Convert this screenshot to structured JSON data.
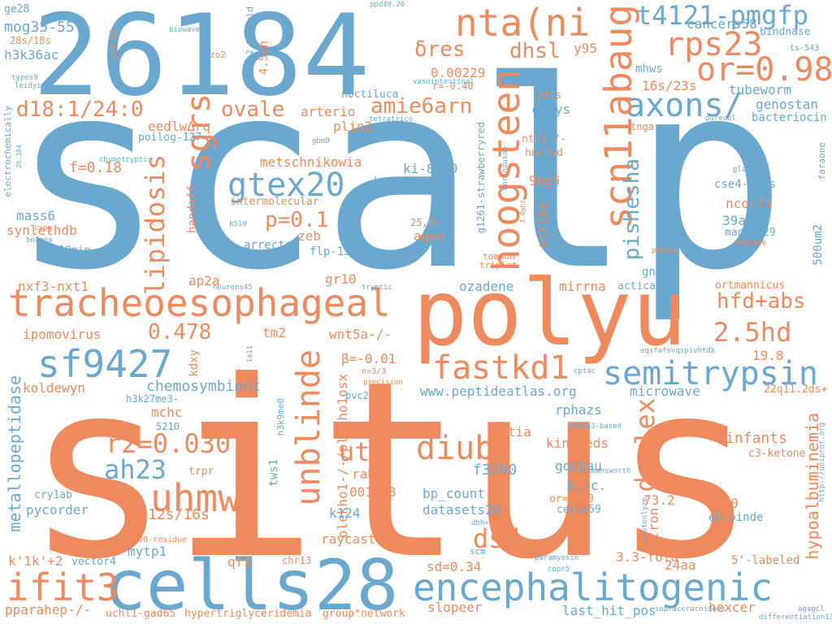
{
  "colors": {
    "blue": "#6aa8d0",
    "orange": "#ee8a5e",
    "background": "#ffffff"
  },
  "words": {
    "scalp": "scalp",
    "situs": "situs",
    "n26184": "26184",
    "polyu": "polyu",
    "cells28": "cells28",
    "tracheoesophageal": "tracheoesophageal",
    "encephalitogenic": "encephalitogenic",
    "semitrypsin": "semitrypsin",
    "sf9427": "sf9427",
    "uhmw": "uhmw",
    "ifit3": "ifit3",
    "ntani": "nta(ni",
    "rps23": "rps23",
    "or098": "or=0.98",
    "axons": "axons/",
    "t4121": "t4121-pmgfp",
    "hoogsteen": "hoogsteen",
    "scn11abaug": "scn11abaug",
    "gtex20": "gtex20",
    "fastkd1": "fastkd1",
    "diub": "diub",
    "unblinde": "unblinde",
    "duplex": "duplex",
    "r20030": "r2=0.030",
    "ah23": "ah23",
    "utp": "utp",
    "dsd": "dsd",
    "hd25": "2.5hd",
    "hfdabs": "hfd+abs",
    "sgrs": "sgrs",
    "lipidosis": "lipidosis",
    "d18": "d18:1/24:0",
    "ovale": "ovale",
    "amie6arn": "amie6arn",
    "p01": "p=0.1",
    "dres": "δres",
    "dhsl": "dhsl",
    "pishesha": "pishesha",
    "v0478": "0.478",
    "mog3555": "mog35-55",
    "h3k36ac": "h3k36ac",
    "ge28": "ge28",
    "f018": "f=0.18",
    "mass6": "mass6",
    "synlethdb": "synlethdb",
    "nxf3": "nxf3-nxt1",
    "ipomovirus": "ipomovirus",
    "metallopeptidase": "metallopeptidase",
    "koldewyn": "koldewyn",
    "chemosymbiont": "chemosymbiont",
    "peptideatlas": "www.peptideatlas.org",
    "microwave": "microwave",
    "hypoalbuminemia": "hypoalbuminemia",
    "cancers58": "cancers58",
    "or040": "r=-0.40",
    "tubeworm": "tubeworm",
    "genostan": "genostan",
    "bacteriocin": "bacteriocin",
    "s1623": "16s/23s",
    "mhws": "mhws",
    "y95": "y95",
    "bindnase": "bindnase",
    "ts543": "ts-543",
    "v000229": "0.00229",
    "eedlwdrq": "eedlwΔrq",
    "poilog": "poilog-127",
    "arterio": "arterio",
    "plin2": "plin2",
    "metschnikowia": "metschnikowia",
    "handoff": "handoff",
    "intermolecular": "intermolecular",
    "zeb": "zeb",
    "arrector": "arrector",
    "flp13": "flp-13",
    "agen": "agen",
    "ki8710": "ki-8710",
    "hawaiensis": "hawaiensis",
    "n9bg5": "9bg5",
    "scribe": "scribe",
    "sonicator": "sonicator",
    "cse4": "cse4-ncps",
    "ncorfs": "ncorfs",
    "aa39": "39aa",
    "manner29": "manner29",
    "um500": "500um2",
    "gnns": "gnns",
    "acticap": "acticap",
    "ortmannicus": "ortmannicus",
    "mirrna": "mirrna",
    "ozadene": "ozadene",
    "gr10": "gr10",
    "ap2a": "ap2a",
    "tm2": "tm2",
    "wnt5a": "wnt5a-/-",
    "beta001": "β=-0.01",
    "kdxy": "kdxy",
    "plekho1": "plekho1-/-/plekho1osx",
    "mchc": "mchc",
    "h3k27me3": "h3k27me3-",
    "n5210": "5210",
    "trpr": "trpr",
    "tws1": "tws1",
    "rab23": "rab23",
    "n001973": "001973",
    "f3290": "f3290",
    "bpcount": "bp_count",
    "datasets20": "datasets20",
    "k124": "k124",
    "raycaste": "raycaste",
    "sd034": "sd=0.34",
    "kindreds": "kindreds",
    "goubau": "goubau",
    "bc": "b.-c.",
    "or179": "or=1.79",
    "cells59": "cells59",
    "rphazs": "rphazs",
    "tia": "tia",
    "infants": "infants",
    "c3ketone": "c3-ketone",
    "v198": "19.8",
    "q11": "22q11.2ds+",
    "v732": "73.2",
    "stron": "stron",
    "papprox": "p≈0",
    "e6binde": "e6-binde",
    "fold33": "3.3-fold",
    "aa24": "24aa",
    "labeled5": "5'-labeled",
    "hexcer": "hexcer",
    "lasthit": "last_hit_pos",
    "slopeer": "slopeer",
    "groupnet": "group*network",
    "hypertrig": "hypertriglyceridemia",
    "uchl1": "uchl1-gad65",
    "pparahep": "pparahep-/-",
    "k1k": "k'1k'+2",
    "vector4": "vector4",
    "mytp1": "mytp1",
    "qf1": "qf1",
    "chr13": "chr13",
    "s1216": "12s/16s",
    "pycorder": "pycorder",
    "cry1ab": "cry1ab",
    "res60": "60-residue",
    "ms10": "10min",
    "ntng": "ntng-/-",
    "hnrnpd": "hnrnpd",
    "tnga": "tnga",
    "ptls": "ptls",
    "cazys": "cazys",
    "g1261": "g1261-strawberryred",
    "fold293": "2.93-fold",
    "sh45": "4.5sh",
    "zo2": "zo2",
    "ps001": "ps0.01",
    "s2818": "28s/18s",
    "types9": "types9",
    "leidyi": "leidyi",
    "biowave": "biowave",
    "ppd4926": "ppd49.26",
    "vasointestinal": "vasointestinal",
    "tetratrico": "tetratrico",
    "noctiluca": "noctiluca",
    "electrochemically": "electrochemically",
    "n26384": "26.384",
    "gbm9": "gbm9",
    "chymotryptic": "chymotryptic",
    "cspg": "cspg",
    "bodega": "bodega",
    "k510": "k510",
    "korthausae": "korthausae",
    "ghz30": "3.0ghz",
    "n2528": "25,28",
    "tomson": "tomson",
    "triplet": "triplet",
    "pinner": "pinner",
    "amidase": "amidase",
    "glandula": "glandula",
    "faraone": "faraone",
    "purecol": "purecol",
    "neurons45": "neurons45",
    "tryptic": "tryptic",
    "la11": "1a11",
    "n3": "n=3/3",
    "precision": "precision",
    "pvc2": "pvc2",
    "h3k9me0": "h3k9me0",
    "cptac": "cptac",
    "eqsfaf": "eqsfafsvqspivhtdk",
    "pcdna3": "pcdna3-based",
    "rickmansworth": "rickmansworth",
    "uniprot": "http://uniprot.org",
    "proteolyze": "proteolyze",
    "dbh": "dbh+",
    "scm": "scm",
    "paramyosin": "paramyosin",
    "copr5": "copr5",
    "supracoracoideus": "supracoracoideus",
    "agagcl": "agagcl",
    "differentiation13": "differentiation13"
  }
}
